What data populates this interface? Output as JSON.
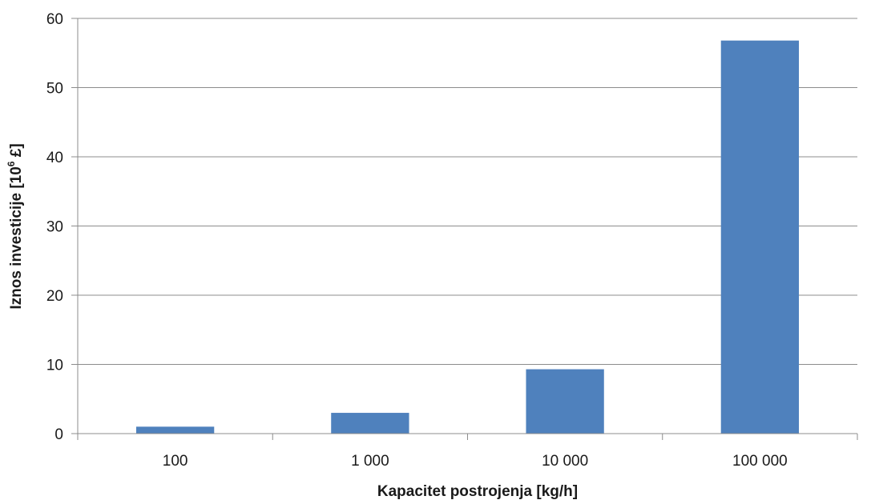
{
  "chart_data": {
    "type": "bar",
    "categories": [
      "100",
      "1 000",
      "10 000",
      "100 000"
    ],
    "series": [
      {
        "values": [
          1.0,
          3.0,
          9.3,
          56.8
        ],
        "color": "#4f81bd"
      }
    ],
    "title": "",
    "xlabel": "Kapacitet postrojenja [kg/h]",
    "ylabel_main": "Iznos investicije [10",
    "ylabel_sup": "6",
    "ylabel_end": " £]",
    "ylim": [
      0,
      60
    ],
    "yticks": [
      "0",
      "10",
      "20",
      "30",
      "40",
      "50",
      "60"
    ],
    "grid": true,
    "legend": "none"
  }
}
